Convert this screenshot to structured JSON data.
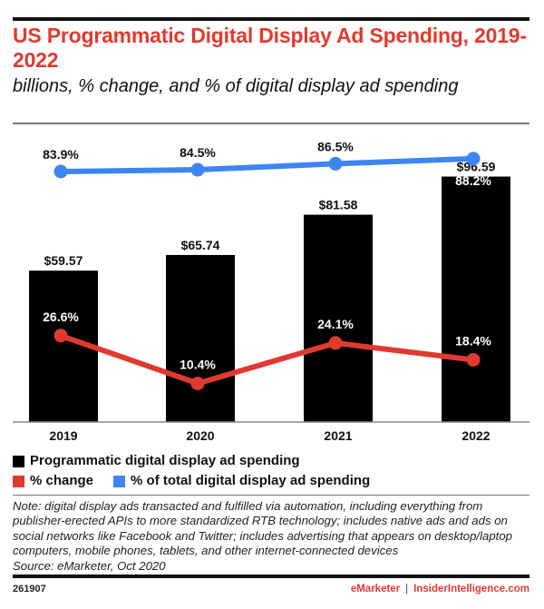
{
  "header": {
    "title": "US Programmatic Digital Display Ad Spending, 2019-2022",
    "subtitle": "billions, % change, and % of digital display ad spending"
  },
  "chart_data": {
    "type": "bar",
    "title": "US Programmatic Digital Display Ad Spending, 2019-2022",
    "subtitle": "billions, % change, and % of digital display ad spending",
    "xlabel": "",
    "ylabel": "",
    "grid": false,
    "categories": [
      "2019",
      "2020",
      "2021",
      "2022"
    ],
    "series": [
      {
        "name": "Programmatic digital display ad spending",
        "kind": "bar",
        "color": "#000000",
        "values": [
          59.57,
          65.74,
          81.58,
          96.59
        ],
        "labels": [
          "$59.57",
          "$65.74",
          "$81.58",
          "$96.59"
        ]
      },
      {
        "name": "% change",
        "kind": "line",
        "color": "#e03a30",
        "values": [
          26.6,
          10.4,
          24.1,
          18.4
        ],
        "labels": [
          "26.6%",
          "10.4%",
          "24.1%",
          "18.4%"
        ]
      },
      {
        "name": "% of total digital display ad spending",
        "kind": "line",
        "color": "#3d85f5",
        "values": [
          83.9,
          84.5,
          86.5,
          88.2
        ],
        "labels": [
          "83.9%",
          "84.5%",
          "86.5%",
          "88.2%"
        ]
      }
    ],
    "legend_position": "bottom-left"
  },
  "legend": {
    "items": [
      {
        "label": "Programmatic digital display ad spending",
        "color": "#000000"
      },
      {
        "label": "% change",
        "color": "#e03a30"
      },
      {
        "label": "% of total digital display ad spending",
        "color": "#3d85f5"
      }
    ]
  },
  "note": "Note: digital display ads transacted and fulfilled via automation, including everything from publisher-erected APIs to more standardized RTB technology; includes native ads and ads on social networks like Facebook and Twitter; includes advertising that appears on desktop/laptop computers, mobile phones, tablets, and other internet-connected devices",
  "source": "Source: eMarketer, Oct 2020",
  "footer": {
    "chart_id": "261907",
    "brand1": "eMarketer",
    "separator": "|",
    "brand2": "InsiderIntelligence.com"
  }
}
